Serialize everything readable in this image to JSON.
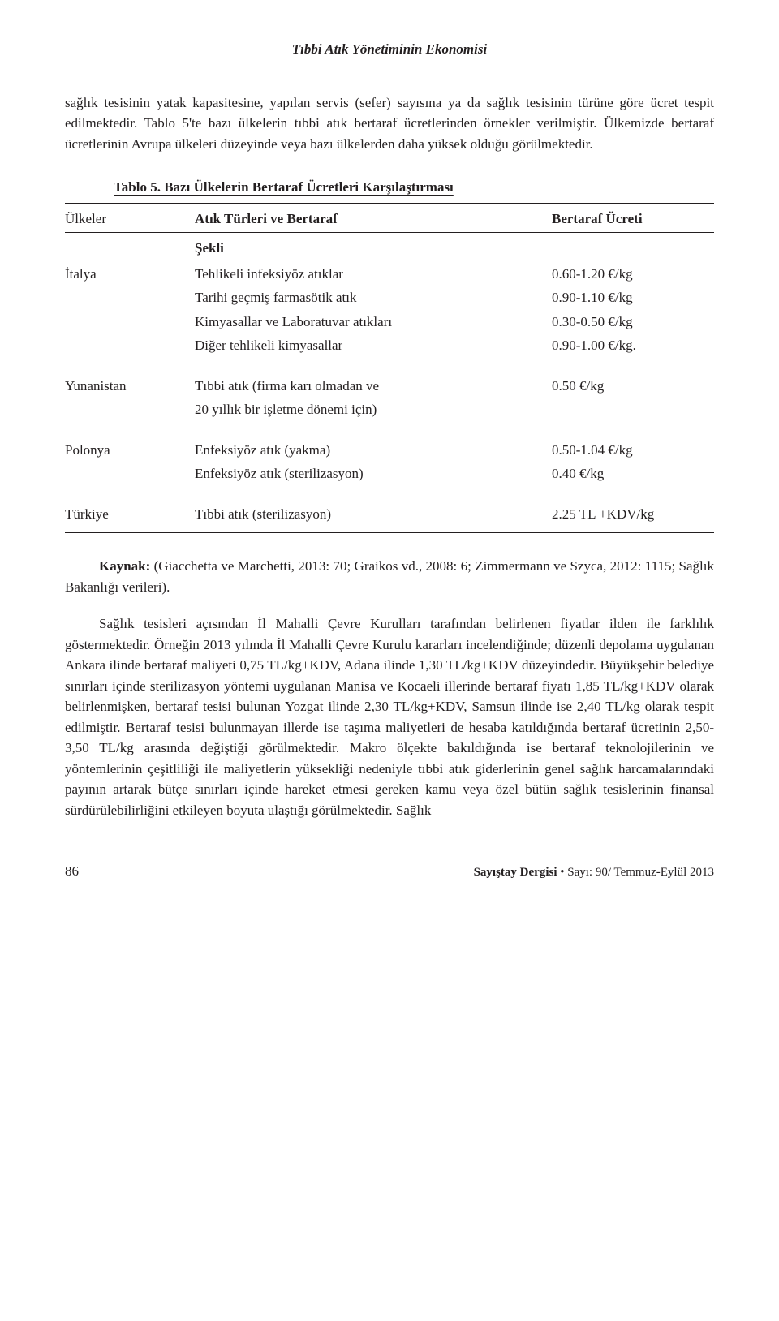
{
  "running_head": "Tıbbi Atık Yönetiminin Ekonomisi",
  "intro_paragraph": "sağlık tesisinin yatak kapasitesine, yapılan servis (sefer) sayısına ya da sağlık tesisinin türüne göre ücret tespit edilmektedir. Tablo 5'te bazı ülkelerin tıbbi atık bertaraf ücretlerinden örnekler verilmiştir. Ülkemizde bertaraf ücretlerinin Avrupa ülkeleri düzeyinde veya bazı ülkelerden daha yüksek olduğu görülmektedir.",
  "table": {
    "title": "Tablo 5. Bazı Ülkelerin Bertaraf Ücretleri Karşılaştırması",
    "headers": {
      "country": "Ülkeler",
      "type_l1": "Atık Türleri ve Bertaraf",
      "type_l2": "Şekli",
      "fee": "Bertaraf Ücreti"
    },
    "groups": [
      {
        "country": "İtalya",
        "rows": [
          {
            "type": "Tehlikeli infeksiyöz atıklar",
            "fee": "0.60-1.20 €/kg"
          },
          {
            "type": "Tarihi geçmiş farmasötik atık",
            "fee": "0.90-1.10 €/kg"
          },
          {
            "type": "Kimyasallar ve Laboratuvar atıkları",
            "fee": "0.30-0.50 €/kg"
          },
          {
            "type": "Diğer tehlikeli kimyasallar",
            "fee": "0.90-1.00 €/kg."
          }
        ]
      },
      {
        "country": "Yunanistan",
        "rows": [
          {
            "type": "Tıbbi atık (firma karı olmadan ve",
            "fee": "0.50 €/kg"
          },
          {
            "type": "20 yıllık bir işletme dönemi için)",
            "fee": ""
          }
        ]
      },
      {
        "country": "Polonya",
        "rows": [
          {
            "type": "Enfeksiyöz atık (yakma)",
            "fee": "0.50-1.04 €/kg"
          },
          {
            "type": "Enfeksiyöz atık (sterilizasyon)",
            "fee": "0.40 €/kg"
          }
        ]
      },
      {
        "country": "Türkiye",
        "rows": [
          {
            "type": "Tıbbi atık (sterilizasyon)",
            "fee": "2.25 TL +KDV/kg"
          }
        ]
      }
    ]
  },
  "source": {
    "label": "Kaynak:",
    "text": " (Giacchetta ve Marchetti, 2013: 70; Graikos vd., 2008: 6; Zimmermann ve Szyca, 2012: 1115; Sağlık Bakanlığı verileri)."
  },
  "main_paragraph": "Sağlık tesisleri açısından İl Mahalli Çevre Kurulları tarafından belirlenen fiyatlar ilden ile farklılık göstermektedir. Örneğin 2013 yılında İl Mahalli Çevre Kurulu kararları incelendiğinde; düzenli depolama uygulanan Ankara ilinde bertaraf maliyeti 0,75 TL/kg+KDV, Adana ilinde 1,30 TL/kg+KDV düzeyindedir. Büyükşehir belediye sınırları içinde sterilizasyon yöntemi uygulanan Manisa ve Kocaeli illerinde bertaraf fiyatı 1,85 TL/kg+KDV olarak belirlenmişken, bertaraf tesisi bulunan Yozgat ilinde 2,30 TL/kg+KDV, Samsun ilinde ise 2,40 TL/kg olarak tespit edilmiştir. Bertaraf tesisi bulunmayan illerde ise taşıma maliyetleri de hesaba katıldığında bertaraf ücretinin 2,50-3,50 TL/kg arasında değiştiği görülmektedir. Makro ölçekte bakıldığında ise bertaraf teknolojilerinin ve yöntemlerinin çeşitliliği ile maliyetlerin yüksekliği nedeniyle tıbbi atık giderlerinin genel sağlık harcamalarındaki payının artarak bütçe sınırları içinde hareket etmesi gereken kamu veya özel bütün sağlık tesislerinin finansal sürdürülebilirliğini etkileyen boyuta ulaştığı görülmektedir. Sağlık",
  "footer": {
    "page": "86",
    "journal": "Sayıştay Dergisi",
    "issue": " • Sayı: 90/ Temmuz-Eylül 2013"
  }
}
